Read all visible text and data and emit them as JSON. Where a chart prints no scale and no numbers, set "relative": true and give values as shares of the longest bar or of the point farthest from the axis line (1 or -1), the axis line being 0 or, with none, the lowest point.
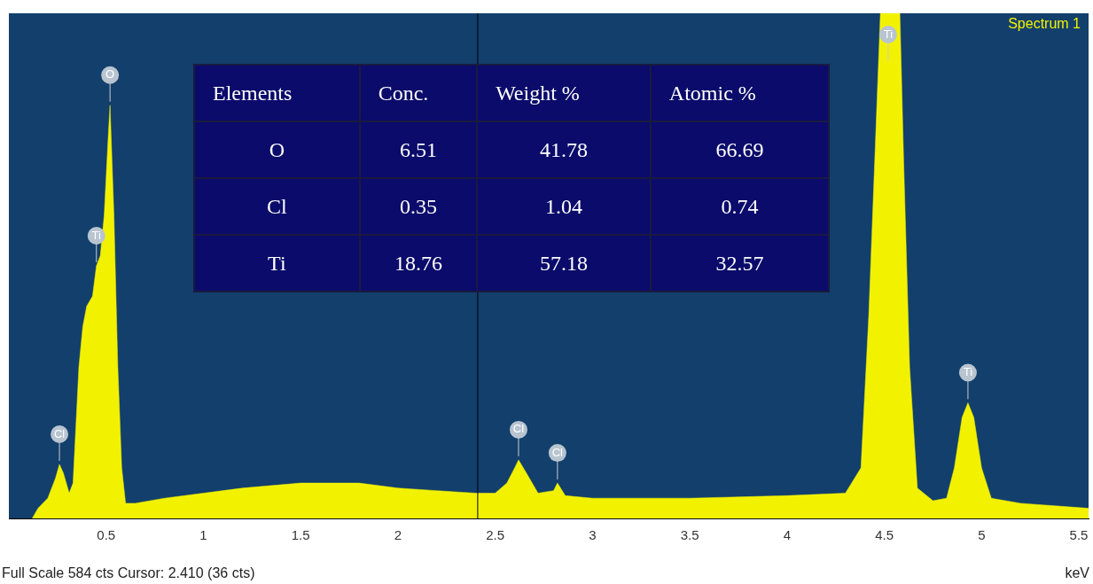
{
  "chart_data": {
    "type": "area",
    "title": "Spectrum 1",
    "xlabel": "keV",
    "relative": true,
    "color": "#f2f200",
    "x": [
      0.12,
      0.15,
      0.2,
      0.24,
      0.26,
      0.28,
      0.31,
      0.33,
      0.36,
      0.38,
      0.4,
      0.43,
      0.45,
      0.47,
      0.49,
      0.51,
      0.52,
      0.54,
      0.56,
      0.58,
      0.6,
      0.65,
      0.8,
      1.0,
      1.2,
      1.5,
      1.8,
      2.0,
      2.2,
      2.4,
      2.5,
      2.56,
      2.6,
      2.62,
      2.66,
      2.72,
      2.8,
      2.82,
      2.86,
      3.0,
      3.5,
      4.0,
      4.3,
      4.38,
      4.42,
      4.46,
      4.48,
      4.58,
      4.6,
      4.63,
      4.67,
      4.75,
      4.82,
      4.86,
      4.9,
      4.93,
      4.96,
      5.0,
      5.05,
      5.2,
      5.55
    ],
    "values": [
      0.0,
      0.02,
      0.04,
      0.08,
      0.107,
      0.09,
      0.05,
      0.07,
      0.3,
      0.38,
      0.42,
      0.44,
      0.5,
      0.52,
      0.6,
      0.75,
      0.818,
      0.6,
      0.3,
      0.1,
      0.03,
      0.03,
      0.04,
      0.05,
      0.06,
      0.07,
      0.07,
      0.06,
      0.055,
      0.05,
      0.05,
      0.07,
      0.1,
      0.116,
      0.09,
      0.05,
      0.055,
      0.07,
      0.045,
      0.04,
      0.04,
      0.045,
      0.05,
      0.1,
      0.4,
      0.8,
      1,
      1,
      0.7,
      0.3,
      0.06,
      0.035,
      0.04,
      0.1,
      0.2,
      0.229,
      0.2,
      0.1,
      0.04,
      0.03,
      0.02
    ],
    "xlim": [
      0,
      5.55
    ],
    "xticks": [
      0.5,
      1,
      1.5,
      2,
      2.5,
      3,
      3.5,
      4,
      4.5,
      5,
      5.5
    ],
    "ref_lines": [
      {
        "axis": "x",
        "value": 2.41,
        "color": "#000000"
      }
    ],
    "annotations": [
      "Full Scale 584 cts Cursor: 2.410 (36 cts)",
      "Elements",
      "Conc.",
      "Weight %",
      "Atomic %",
      "O",
      "6.51",
      "41.78",
      "66.69",
      "Cl",
      "0.35",
      "1.04",
      "0.74",
      "Ti",
      "18.76",
      "57.18",
      "32.57",
      {
        "text": "Cl",
        "x": 0.26,
        "y": 0.107
      },
      {
        "text": "Ti",
        "x": 0.45,
        "y": 0.5
      },
      {
        "text": "O",
        "x": 0.52,
        "y": 0.818
      },
      {
        "text": "Cl",
        "x": 2.62,
        "y": 0.116
      },
      {
        "text": "Cl",
        "x": 2.82,
        "y": 0.07
      },
      {
        "text": "Ti",
        "x": 4.52,
        "y": 1
      },
      {
        "text": "Ti",
        "x": 4.93,
        "y": 0.229
      }
    ]
  }
}
